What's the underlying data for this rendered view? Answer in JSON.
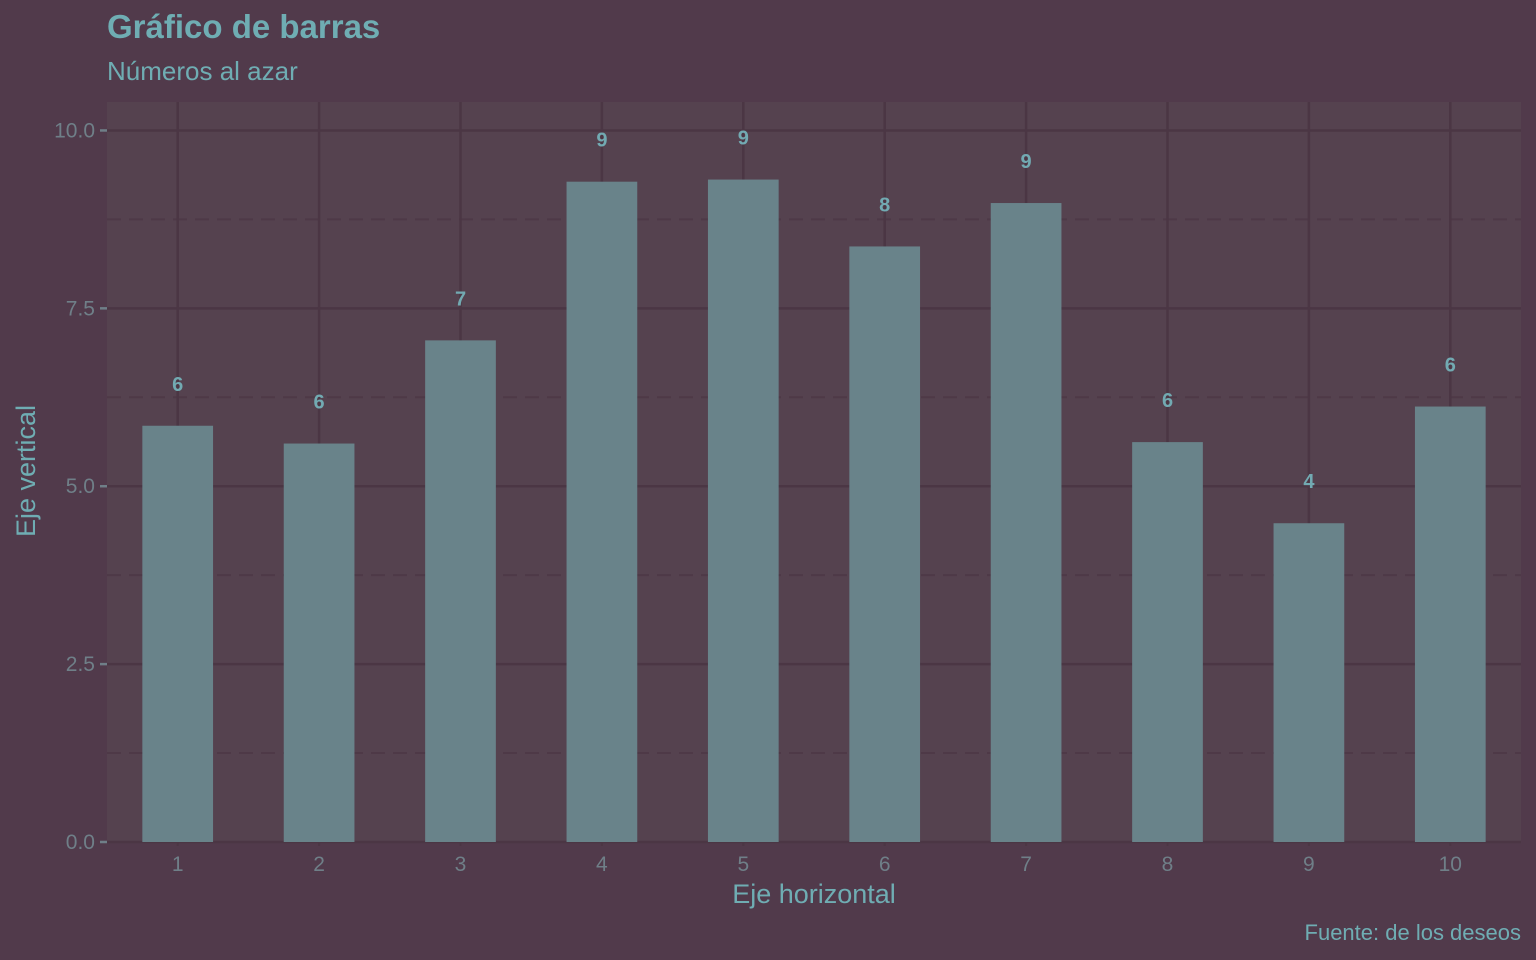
{
  "colors": {
    "background": "#513a4b",
    "panel": "#55424f",
    "grid_major": "#4b3644",
    "grid_minor": "#4e3947",
    "bar": "#69838a",
    "title_text": "#6fadb3",
    "tick_text": "#6f7f88",
    "data_label_text": "#72aab2",
    "tick_mark": "#6f7f88"
  },
  "chart_data": {
    "type": "bar",
    "title": "Gráfico de barras",
    "subtitle": "Números al azar",
    "xlabel": "Eje horizontal",
    "ylabel": "Eje vertical",
    "caption": "Fuente: de los deseos",
    "categories": [
      "1",
      "2",
      "3",
      "4",
      "5",
      "6",
      "7",
      "8",
      "9",
      "10"
    ],
    "values": [
      5.85,
      5.6,
      7.05,
      9.28,
      9.31,
      8.37,
      8.98,
      5.62,
      4.48,
      6.12
    ],
    "data_labels": [
      "6",
      "6",
      "7",
      "9",
      "9",
      "8",
      "9",
      "6",
      "4",
      "6"
    ],
    "ylim": [
      0,
      10.4
    ],
    "yticks": [
      0.0,
      2.5,
      5.0,
      7.5,
      10.0
    ],
    "ytick_labels": [
      "0.0",
      "2.5",
      "5.0",
      "7.5",
      "10.0"
    ],
    "grid": true,
    "legend": "none"
  }
}
